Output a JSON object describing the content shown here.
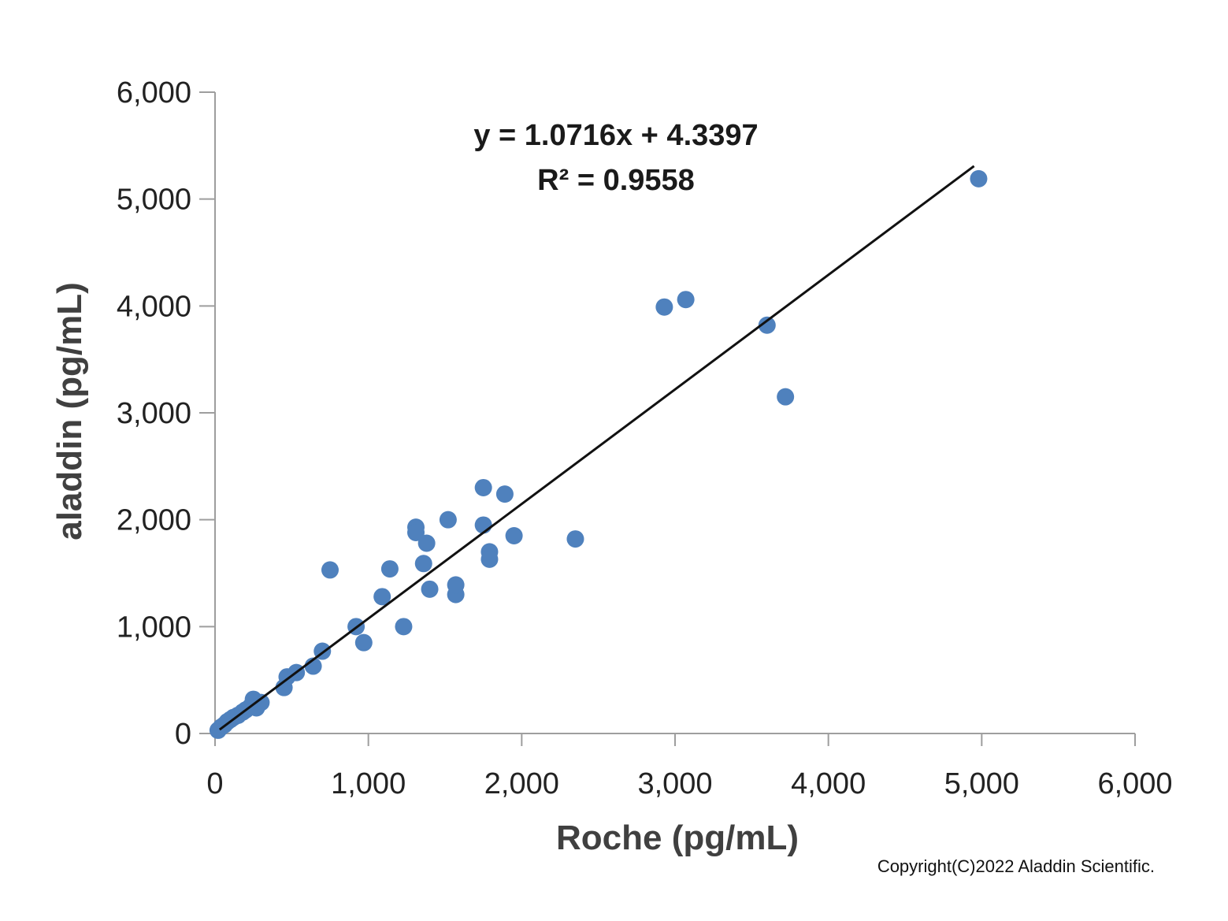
{
  "chart_data": {
    "type": "scatter",
    "xlabel": "Roche (pg/mL)",
    "ylabel": "aladdin (pg/mL)",
    "xlim": [
      0,
      6000
    ],
    "ylim": [
      0,
      6000
    ],
    "xticks": [
      "0",
      "1,000",
      "2,000",
      "3,000",
      "4,000",
      "5,000",
      "6,000"
    ],
    "yticks": [
      "0",
      "1,000",
      "2,000",
      "3,000",
      "4,000",
      "5,000",
      "6,000"
    ],
    "xtick_values": [
      0,
      1000,
      2000,
      3000,
      4000,
      5000,
      6000
    ],
    "ytick_values": [
      0,
      1000,
      2000,
      3000,
      4000,
      5000,
      6000
    ],
    "grid": false,
    "marker_color": "#4f81bd",
    "trendline": {
      "slope": 1.0716,
      "intercept": 4.3397,
      "x_range": [
        30,
        4950
      ],
      "color": "#111111",
      "equation_label": "y = 1.0716x + 4.3397",
      "r2_label": "R² = 0.9558"
    },
    "points": [
      [
        20,
        30
      ],
      [
        40,
        60
      ],
      [
        60,
        80
      ],
      [
        80,
        110
      ],
      [
        100,
        130
      ],
      [
        120,
        150
      ],
      [
        150,
        170
      ],
      [
        180,
        200
      ],
      [
        200,
        220
      ],
      [
        230,
        250
      ],
      [
        250,
        320
      ],
      [
        270,
        240
      ],
      [
        300,
        290
      ],
      [
        450,
        430
      ],
      [
        470,
        530
      ],
      [
        530,
        570
      ],
      [
        640,
        630
      ],
      [
        700,
        770
      ],
      [
        750,
        1530
      ],
      [
        920,
        1000
      ],
      [
        970,
        850
      ],
      [
        1090,
        1280
      ],
      [
        1140,
        1540
      ],
      [
        1230,
        1000
      ],
      [
        1310,
        1930
      ],
      [
        1310,
        1880
      ],
      [
        1360,
        1590
      ],
      [
        1380,
        1780
      ],
      [
        1400,
        1350
      ],
      [
        1520,
        2000
      ],
      [
        1570,
        1300
      ],
      [
        1570,
        1390
      ],
      [
        1750,
        2300
      ],
      [
        1750,
        1950
      ],
      [
        1790,
        1700
      ],
      [
        1790,
        1630
      ],
      [
        1890,
        2240
      ],
      [
        1950,
        1850
      ],
      [
        2350,
        1820
      ],
      [
        2930,
        3990
      ],
      [
        3070,
        4060
      ],
      [
        3600,
        3820
      ],
      [
        3720,
        3150
      ],
      [
        4980,
        5190
      ]
    ]
  },
  "copyright": "Copyright(C)2022 Aladdin Scientific."
}
